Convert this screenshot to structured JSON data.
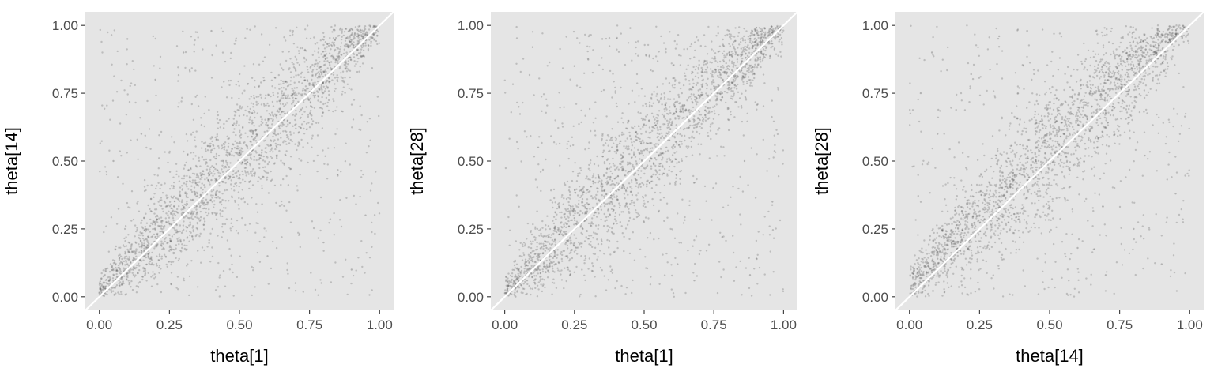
{
  "colors": {
    "panel_background": "#e5e5e5",
    "points": "#555555",
    "diagonal": "#ffffff",
    "tick_text": "#4d4d4d",
    "tick_mark": "#333333"
  },
  "chart_data": [
    {
      "type": "scatter",
      "xlabel": "theta[1]",
      "ylabel": "theta[14]",
      "xlim": [
        -0.05,
        1.05
      ],
      "ylim": [
        -0.05,
        1.05
      ],
      "x_ticks": [
        "0.00",
        "0.25",
        "0.50",
        "0.75",
        "1.00"
      ],
      "y_ticks": [
        "0.00",
        "0.25",
        "0.50",
        "0.75",
        "1.00"
      ],
      "tick_values": [
        0,
        0.25,
        0.5,
        0.75,
        1
      ],
      "reference_line": {
        "type": "identity",
        "slope": 1,
        "intercept": 0
      },
      "grid": false,
      "legend": "none",
      "point_sample": {
        "concentrated_near_diagonal": [
          [
            0.02,
            0.03
          ],
          [
            0.05,
            0.06
          ],
          [
            0.08,
            0.07
          ],
          [
            0.1,
            0.12
          ],
          [
            0.12,
            0.1
          ],
          [
            0.15,
            0.17
          ],
          [
            0.18,
            0.14
          ],
          [
            0.2,
            0.22
          ],
          [
            0.22,
            0.19
          ],
          [
            0.25,
            0.27
          ],
          [
            0.28,
            0.24
          ],
          [
            0.3,
            0.33
          ],
          [
            0.32,
            0.29
          ],
          [
            0.35,
            0.38
          ],
          [
            0.38,
            0.34
          ],
          [
            0.4,
            0.43
          ],
          [
            0.42,
            0.39
          ],
          [
            0.45,
            0.48
          ],
          [
            0.48,
            0.44
          ],
          [
            0.5,
            0.53
          ],
          [
            0.52,
            0.49
          ],
          [
            0.55,
            0.58
          ],
          [
            0.58,
            0.54
          ],
          [
            0.6,
            0.63
          ],
          [
            0.62,
            0.59
          ],
          [
            0.65,
            0.68
          ],
          [
            0.68,
            0.64
          ],
          [
            0.7,
            0.73
          ],
          [
            0.72,
            0.69
          ],
          [
            0.75,
            0.78
          ],
          [
            0.78,
            0.74
          ],
          [
            0.8,
            0.83
          ],
          [
            0.82,
            0.79
          ],
          [
            0.85,
            0.88
          ],
          [
            0.88,
            0.84
          ],
          [
            0.9,
            0.93
          ],
          [
            0.92,
            0.89
          ],
          [
            0.95,
            0.97
          ],
          [
            0.97,
            0.94
          ],
          [
            0.99,
            0.99
          ]
        ],
        "scattered_off_diagonal": [
          [
            0.1,
            0.95
          ],
          [
            0.2,
            0.8
          ],
          [
            0.3,
            0.9
          ],
          [
            0.15,
            0.6
          ],
          [
            0.05,
            0.5
          ],
          [
            0.4,
            0.98
          ],
          [
            0.9,
            0.1
          ],
          [
            0.8,
            0.2
          ],
          [
            0.7,
            0.05
          ],
          [
            0.95,
            0.3
          ],
          [
            0.6,
            0.15
          ],
          [
            0.85,
            0.45
          ]
        ]
      }
    },
    {
      "type": "scatter",
      "xlabel": "theta[1]",
      "ylabel": "theta[28]",
      "xlim": [
        -0.05,
        1.05
      ],
      "ylim": [
        -0.05,
        1.05
      ],
      "x_ticks": [
        "0.00",
        "0.25",
        "0.50",
        "0.75",
        "1.00"
      ],
      "y_ticks": [
        "0.00",
        "0.25",
        "0.50",
        "0.75",
        "1.00"
      ],
      "tick_values": [
        0,
        0.25,
        0.5,
        0.75,
        1
      ],
      "reference_line": {
        "type": "identity",
        "slope": 1,
        "intercept": 0
      },
      "grid": false,
      "legend": "none",
      "point_sample": {
        "concentrated_near_diagonal": [
          [
            0.02,
            0.04
          ],
          [
            0.05,
            0.07
          ],
          [
            0.08,
            0.06
          ],
          [
            0.1,
            0.13
          ],
          [
            0.12,
            0.11
          ],
          [
            0.15,
            0.18
          ],
          [
            0.18,
            0.15
          ],
          [
            0.2,
            0.24
          ],
          [
            0.22,
            0.2
          ],
          [
            0.25,
            0.29
          ],
          [
            0.28,
            0.25
          ],
          [
            0.3,
            0.34
          ],
          [
            0.32,
            0.3
          ],
          [
            0.35,
            0.39
          ],
          [
            0.38,
            0.35
          ],
          [
            0.4,
            0.44
          ],
          [
            0.42,
            0.4
          ],
          [
            0.45,
            0.49
          ],
          [
            0.48,
            0.45
          ],
          [
            0.5,
            0.54
          ],
          [
            0.52,
            0.5
          ],
          [
            0.55,
            0.59
          ],
          [
            0.58,
            0.55
          ],
          [
            0.6,
            0.64
          ],
          [
            0.62,
            0.6
          ],
          [
            0.65,
            0.69
          ],
          [
            0.68,
            0.65
          ],
          [
            0.7,
            0.74
          ],
          [
            0.72,
            0.7
          ],
          [
            0.75,
            0.79
          ],
          [
            0.78,
            0.75
          ],
          [
            0.8,
            0.84
          ],
          [
            0.82,
            0.8
          ],
          [
            0.85,
            0.89
          ],
          [
            0.88,
            0.85
          ],
          [
            0.9,
            0.94
          ],
          [
            0.92,
            0.9
          ],
          [
            0.95,
            0.97
          ],
          [
            0.97,
            0.95
          ],
          [
            0.99,
            0.99
          ]
        ],
        "scattered_off_diagonal": [
          [
            0.1,
            0.92
          ],
          [
            0.25,
            0.85
          ],
          [
            0.35,
            0.95
          ],
          [
            0.12,
            0.55
          ],
          [
            0.05,
            0.7
          ],
          [
            0.45,
            0.99
          ],
          [
            0.88,
            0.08
          ],
          [
            0.78,
            0.22
          ],
          [
            0.68,
            0.06
          ],
          [
            0.96,
            0.35
          ],
          [
            0.62,
            0.12
          ],
          [
            0.86,
            0.5
          ]
        ]
      }
    },
    {
      "type": "scatter",
      "xlabel": "theta[14]",
      "ylabel": "theta[28]",
      "xlim": [
        -0.05,
        1.05
      ],
      "ylim": [
        -0.05,
        1.05
      ],
      "x_ticks": [
        "0.00",
        "0.25",
        "0.50",
        "0.75",
        "1.00"
      ],
      "y_ticks": [
        "0.00",
        "0.25",
        "0.50",
        "0.75",
        "1.00"
      ],
      "tick_values": [
        0,
        0.25,
        0.5,
        0.75,
        1
      ],
      "reference_line": {
        "type": "identity",
        "slope": 1,
        "intercept": 0
      },
      "grid": false,
      "legend": "none",
      "point_sample": {
        "concentrated_near_diagonal": [
          [
            0.02,
            0.05
          ],
          [
            0.05,
            0.08
          ],
          [
            0.08,
            0.09
          ],
          [
            0.1,
            0.14
          ],
          [
            0.12,
            0.13
          ],
          [
            0.15,
            0.2
          ],
          [
            0.18,
            0.19
          ],
          [
            0.2,
            0.25
          ],
          [
            0.22,
            0.23
          ],
          [
            0.25,
            0.3
          ],
          [
            0.28,
            0.28
          ],
          [
            0.3,
            0.35
          ],
          [
            0.32,
            0.33
          ],
          [
            0.35,
            0.4
          ],
          [
            0.38,
            0.38
          ],
          [
            0.4,
            0.45
          ],
          [
            0.42,
            0.43
          ],
          [
            0.45,
            0.5
          ],
          [
            0.48,
            0.48
          ],
          [
            0.5,
            0.55
          ],
          [
            0.52,
            0.53
          ],
          [
            0.55,
            0.6
          ],
          [
            0.58,
            0.58
          ],
          [
            0.6,
            0.65
          ],
          [
            0.62,
            0.63
          ],
          [
            0.65,
            0.7
          ],
          [
            0.68,
            0.68
          ],
          [
            0.7,
            0.75
          ],
          [
            0.72,
            0.73
          ],
          [
            0.75,
            0.8
          ],
          [
            0.78,
            0.78
          ],
          [
            0.8,
            0.85
          ],
          [
            0.82,
            0.83
          ],
          [
            0.85,
            0.9
          ],
          [
            0.88,
            0.88
          ],
          [
            0.9,
            0.94
          ],
          [
            0.92,
            0.92
          ],
          [
            0.95,
            0.97
          ],
          [
            0.97,
            0.96
          ],
          [
            0.99,
            0.99
          ]
        ],
        "scattered_off_diagonal": [
          [
            0.08,
            0.9
          ],
          [
            0.22,
            0.82
          ],
          [
            0.32,
            0.96
          ],
          [
            0.1,
            0.6
          ],
          [
            0.04,
            0.75
          ],
          [
            0.42,
            0.98
          ],
          [
            0.9,
            0.12
          ],
          [
            0.8,
            0.25
          ],
          [
            0.7,
            0.08
          ],
          [
            0.95,
            0.38
          ],
          [
            0.6,
            0.18
          ],
          [
            0.84,
            0.52
          ]
        ]
      }
    }
  ]
}
